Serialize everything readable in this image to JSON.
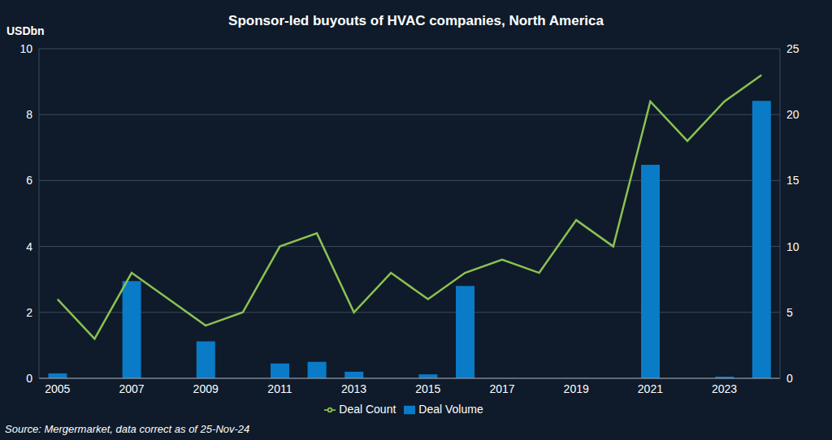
{
  "chart_data": {
    "type": "bar",
    "title": "Sponsor-led buyouts of HVAC companies, North America",
    "ylabel": "USDbn",
    "source": "Source: Mergermarket, data correct as of 25-Nov-24",
    "categories": [
      "2005",
      null,
      "2007",
      null,
      "2009",
      null,
      "2011",
      null,
      "2013",
      null,
      "2015",
      null,
      "2017",
      null,
      "2019",
      null,
      "2021",
      null,
      "2023",
      null
    ],
    "series": [
      {
        "name": "Deal Volume",
        "type": "bar",
        "color": "#0a7bc7",
        "values": [
          0.15,
          0,
          2.95,
          0,
          1.12,
          0,
          0.45,
          0.5,
          0.2,
          0,
          0.12,
          2.8,
          0,
          0,
          0,
          0,
          6.48,
          0,
          0.05,
          8.42
        ]
      },
      {
        "name": "Deal Count",
        "type": "line",
        "color": "#8cc152",
        "axis": "y2",
        "values": [
          6,
          3,
          8,
          6,
          4,
          5,
          10,
          11,
          5,
          8,
          6,
          8,
          9,
          8,
          12,
          10,
          21,
          18,
          21,
          23
        ]
      }
    ],
    "ylim": [
      0,
      10
    ],
    "yticks": [
      0,
      2,
      4,
      6,
      8,
      10
    ],
    "y2lim": [
      0,
      25
    ],
    "y2ticks": [
      0,
      5,
      10,
      15,
      20,
      25
    ],
    "grid": true,
    "legend": "bottom"
  }
}
